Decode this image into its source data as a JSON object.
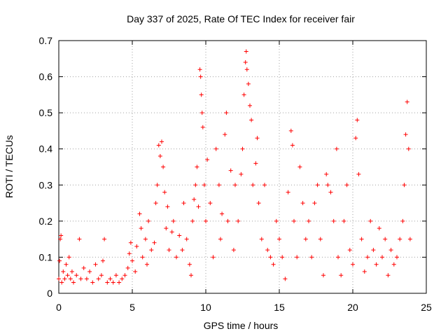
{
  "chart_data": {
    "type": "scatter",
    "title": "Day 337 of 2025, Rate Of TEC Index for receiver fair",
    "xlabel": "GPS time / hours",
    "ylabel": "ROTI / TECUs",
    "xlim": [
      0,
      25
    ],
    "ylim": [
      0,
      0.7
    ],
    "x_ticks": [
      "0",
      "5",
      "10",
      "15",
      "20",
      "25"
    ],
    "y_ticks": [
      "0",
      "0.1",
      "0.2",
      "0.3",
      "0.4",
      "0.5",
      "0.6",
      "0.7"
    ],
    "grid": true,
    "marker": "+",
    "marker_color": "#ff0000",
    "series": [
      {
        "points": [
          [
            0.0,
            0.04
          ],
          [
            0.05,
            0.09
          ],
          [
            0.1,
            0.15
          ],
          [
            0.15,
            0.16
          ],
          [
            0.2,
            0.03
          ],
          [
            0.3,
            0.06
          ],
          [
            0.4,
            0.04
          ],
          [
            0.5,
            0.08
          ],
          [
            0.6,
            0.05
          ],
          [
            0.7,
            0.1
          ],
          [
            0.8,
            0.04
          ],
          [
            0.9,
            0.06
          ],
          [
            1.0,
            0.03
          ],
          [
            1.2,
            0.05
          ],
          [
            1.4,
            0.15
          ],
          [
            1.5,
            0.04
          ],
          [
            1.7,
            0.07
          ],
          [
            1.9,
            0.04
          ],
          [
            2.1,
            0.06
          ],
          [
            2.3,
            0.03
          ],
          [
            2.5,
            0.08
          ],
          [
            2.7,
            0.04
          ],
          [
            2.9,
            0.05
          ],
          [
            3.0,
            0.09
          ],
          [
            3.1,
            0.15
          ],
          [
            3.3,
            0.03
          ],
          [
            3.5,
            0.04
          ],
          [
            3.7,
            0.03
          ],
          [
            3.9,
            0.05
          ],
          [
            4.1,
            0.03
          ],
          [
            4.3,
            0.04
          ],
          [
            4.5,
            0.05
          ],
          [
            4.7,
            0.07
          ],
          [
            4.8,
            0.11
          ],
          [
            4.9,
            0.14
          ],
          [
            5.0,
            0.09
          ],
          [
            5.2,
            0.06
          ],
          [
            5.3,
            0.13
          ],
          [
            5.5,
            0.22
          ],
          [
            5.6,
            0.18
          ],
          [
            5.7,
            0.1
          ],
          [
            5.9,
            0.15
          ],
          [
            6.0,
            0.08
          ],
          [
            6.1,
            0.2
          ],
          [
            6.3,
            0.12
          ],
          [
            6.5,
            0.14
          ],
          [
            6.6,
            0.25
          ],
          [
            6.7,
            0.3
          ],
          [
            6.8,
            0.41
          ],
          [
            6.9,
            0.38
          ],
          [
            7.0,
            0.42
          ],
          [
            7.1,
            0.35
          ],
          [
            7.2,
            0.28
          ],
          [
            7.3,
            0.18
          ],
          [
            7.4,
            0.24
          ],
          [
            7.5,
            0.12
          ],
          [
            7.7,
            0.17
          ],
          [
            7.8,
            0.2
          ],
          [
            8.0,
            0.1
          ],
          [
            8.2,
            0.16
          ],
          [
            8.4,
            0.12
          ],
          [
            8.5,
            0.25
          ],
          [
            8.7,
            0.15
          ],
          [
            8.9,
            0.08
          ],
          [
            9.0,
            0.05
          ],
          [
            9.1,
            0.2
          ],
          [
            9.2,
            0.26
          ],
          [
            9.3,
            0.3
          ],
          [
            9.4,
            0.35
          ],
          [
            9.5,
            0.24
          ],
          [
            9.6,
            0.62
          ],
          [
            9.65,
            0.6
          ],
          [
            9.7,
            0.55
          ],
          [
            9.75,
            0.5
          ],
          [
            9.8,
            0.46
          ],
          [
            9.9,
            0.3
          ],
          [
            10.0,
            0.2
          ],
          [
            10.1,
            0.37
          ],
          [
            10.3,
            0.25
          ],
          [
            10.5,
            0.1
          ],
          [
            10.7,
            0.4
          ],
          [
            10.9,
            0.3
          ],
          [
            11.0,
            0.15
          ],
          [
            11.1,
            0.22
          ],
          [
            11.3,
            0.44
          ],
          [
            11.4,
            0.5
          ],
          [
            11.5,
            0.2
          ],
          [
            11.7,
            0.34
          ],
          [
            11.9,
            0.12
          ],
          [
            12.0,
            0.3
          ],
          [
            12.2,
            0.2
          ],
          [
            12.4,
            0.33
          ],
          [
            12.5,
            0.4
          ],
          [
            12.6,
            0.55
          ],
          [
            12.7,
            0.64
          ],
          [
            12.75,
            0.67
          ],
          [
            12.8,
            0.62
          ],
          [
            12.9,
            0.58
          ],
          [
            13.0,
            0.52
          ],
          [
            13.1,
            0.48
          ],
          [
            13.2,
            0.3
          ],
          [
            13.4,
            0.36
          ],
          [
            13.5,
            0.43
          ],
          [
            13.6,
            0.25
          ],
          [
            13.8,
            0.15
          ],
          [
            14.0,
            0.3
          ],
          [
            14.2,
            0.12
          ],
          [
            14.4,
            0.1
          ],
          [
            14.6,
            0.08
          ],
          [
            14.8,
            0.2
          ],
          [
            15.0,
            0.15
          ],
          [
            15.2,
            0.1
          ],
          [
            15.4,
            0.04
          ],
          [
            15.6,
            0.28
          ],
          [
            15.8,
            0.45
          ],
          [
            15.9,
            0.41
          ],
          [
            16.0,
            0.2
          ],
          [
            16.2,
            0.1
          ],
          [
            16.4,
            0.35
          ],
          [
            16.6,
            0.25
          ],
          [
            16.8,
            0.15
          ],
          [
            17.0,
            0.2
          ],
          [
            17.2,
            0.1
          ],
          [
            17.4,
            0.25
          ],
          [
            17.6,
            0.3
          ],
          [
            17.8,
            0.15
          ],
          [
            18.0,
            0.05
          ],
          [
            18.2,
            0.33
          ],
          [
            18.3,
            0.3
          ],
          [
            18.5,
            0.28
          ],
          [
            18.7,
            0.2
          ],
          [
            18.9,
            0.4
          ],
          [
            19.0,
            0.1
          ],
          [
            19.2,
            0.05
          ],
          [
            19.4,
            0.2
          ],
          [
            19.6,
            0.3
          ],
          [
            19.8,
            0.12
          ],
          [
            20.0,
            0.08
          ],
          [
            20.2,
            0.43
          ],
          [
            20.3,
            0.48
          ],
          [
            20.4,
            0.33
          ],
          [
            20.6,
            0.15
          ],
          [
            20.8,
            0.06
          ],
          [
            21.0,
            0.1
          ],
          [
            21.2,
            0.2
          ],
          [
            21.4,
            0.12
          ],
          [
            21.6,
            0.08
          ],
          [
            21.8,
            0.18
          ],
          [
            22.0,
            0.1
          ],
          [
            22.2,
            0.15
          ],
          [
            22.4,
            0.05
          ],
          [
            22.6,
            0.12
          ],
          [
            22.8,
            0.08
          ],
          [
            23.0,
            0.1
          ],
          [
            23.2,
            0.15
          ],
          [
            23.4,
            0.2
          ],
          [
            23.5,
            0.3
          ],
          [
            23.6,
            0.44
          ],
          [
            23.7,
            0.53
          ],
          [
            23.8,
            0.4
          ],
          [
            23.9,
            0.15
          ]
        ]
      }
    ]
  }
}
